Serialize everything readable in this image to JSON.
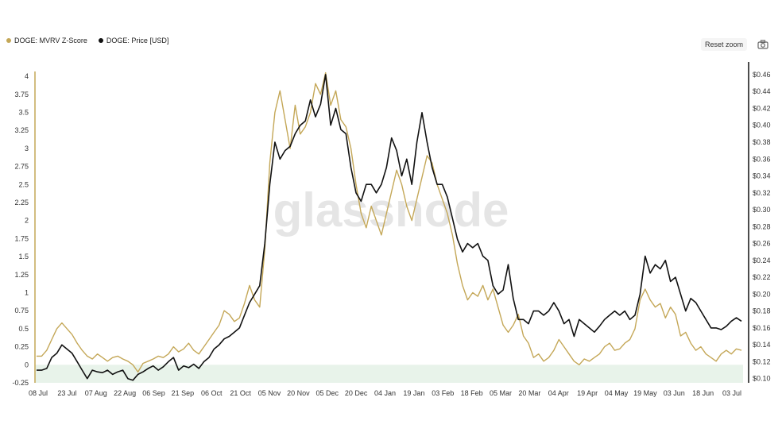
{
  "legend": [
    {
      "label": "DOGE: MVRV Z-Score",
      "color": "#c4a757"
    },
    {
      "label": "DOGE: Price [USD]",
      "color": "#111111"
    }
  ],
  "controls": {
    "reset_zoom": "Reset zoom",
    "camera_icon": "camera-icon"
  },
  "watermark": "glassnode",
  "chart_data": {
    "type": "line",
    "x_ticks": [
      "08 Jul",
      "23 Jul",
      "07 Aug",
      "22 Aug",
      "06 Sep",
      "21 Sep",
      "06 Oct",
      "21 Oct",
      "05 Nov",
      "20 Nov",
      "05 Dec",
      "20 Dec",
      "04 Jan",
      "19 Jan",
      "03 Feb",
      "18 Feb",
      "05 Mar",
      "20 Mar",
      "04 Apr",
      "19 Apr",
      "04 May",
      "19 May",
      "03 Jun",
      "18 Jun",
      "03 Jul"
    ],
    "y_left": {
      "ticks": [
        "-0.25",
        "0",
        "0.25",
        "0.5",
        "0.75",
        "1",
        "1.25",
        "1.5",
        "1.75",
        "2",
        "2.25",
        "2.5",
        "2.75",
        "3",
        "3.25",
        "3.5",
        "3.75",
        "4"
      ],
      "range": [
        -0.25,
        4.2
      ]
    },
    "y_right": {
      "ticks": [
        "$0.10",
        "$0.12",
        "$0.14",
        "$0.16",
        "$0.18",
        "$0.20",
        "$0.22",
        "$0.24",
        "$0.26",
        "$0.28",
        "$0.30",
        "$0.32",
        "$0.34",
        "$0.36",
        "$0.38",
        "$0.40",
        "$0.42",
        "$0.44",
        "$0.46"
      ],
      "range": [
        0.095,
        0.475
      ]
    },
    "series": [
      {
        "name": "DOGE: MVRV Z-Score",
        "axis": "left",
        "color": "#c4a757",
        "values": [
          0.12,
          0.12,
          0.2,
          0.35,
          0.5,
          0.58,
          0.5,
          0.42,
          0.3,
          0.2,
          0.12,
          0.08,
          0.15,
          0.1,
          0.05,
          0.1,
          0.12,
          0.08,
          0.05,
          0.0,
          -0.1,
          0.02,
          0.05,
          0.08,
          0.12,
          0.1,
          0.15,
          0.25,
          0.18,
          0.22,
          0.3,
          0.2,
          0.15,
          0.25,
          0.35,
          0.45,
          0.55,
          0.75,
          0.7,
          0.6,
          0.65,
          0.85,
          1.1,
          0.9,
          0.8,
          1.6,
          2.8,
          3.5,
          3.8,
          3.4,
          3.0,
          3.6,
          3.2,
          3.3,
          3.5,
          3.9,
          3.75,
          4.05,
          3.6,
          3.8,
          3.4,
          3.3,
          3.0,
          2.5,
          2.1,
          1.9,
          2.2,
          2.0,
          1.8,
          2.1,
          2.4,
          2.7,
          2.5,
          2.2,
          2.0,
          2.3,
          2.6,
          2.9,
          2.8,
          2.5,
          2.3,
          2.1,
          1.8,
          1.4,
          1.1,
          0.9,
          1.0,
          0.95,
          1.1,
          0.9,
          1.05,
          0.8,
          0.55,
          0.45,
          0.55,
          0.7,
          0.4,
          0.3,
          0.1,
          0.15,
          0.05,
          0.1,
          0.2,
          0.35,
          0.25,
          0.15,
          0.05,
          0.0,
          0.08,
          0.05,
          0.1,
          0.15,
          0.25,
          0.3,
          0.2,
          0.22,
          0.3,
          0.35,
          0.5,
          0.9,
          1.05,
          0.9,
          0.8,
          0.85,
          0.65,
          0.8,
          0.7,
          0.4,
          0.45,
          0.3,
          0.2,
          0.25,
          0.15,
          0.1,
          0.05,
          0.15,
          0.2,
          0.15,
          0.22,
          0.2
        ]
      },
      {
        "name": "DOGE: Price [USD]",
        "axis": "right",
        "color": "#111111",
        "values": [
          0.11,
          0.11,
          0.112,
          0.125,
          0.13,
          0.14,
          0.135,
          0.13,
          0.12,
          0.11,
          0.1,
          0.11,
          0.108,
          0.107,
          0.11,
          0.105,
          0.108,
          0.11,
          0.1,
          0.098,
          0.105,
          0.108,
          0.112,
          0.115,
          0.11,
          0.114,
          0.12,
          0.125,
          0.11,
          0.115,
          0.113,
          0.117,
          0.112,
          0.12,
          0.125,
          0.135,
          0.14,
          0.147,
          0.15,
          0.155,
          0.16,
          0.175,
          0.19,
          0.2,
          0.21,
          0.26,
          0.33,
          0.38,
          0.36,
          0.37,
          0.375,
          0.39,
          0.4,
          0.405,
          0.43,
          0.41,
          0.425,
          0.46,
          0.4,
          0.42,
          0.395,
          0.39,
          0.35,
          0.32,
          0.31,
          0.33,
          0.33,
          0.32,
          0.33,
          0.35,
          0.385,
          0.37,
          0.34,
          0.36,
          0.33,
          0.38,
          0.415,
          0.38,
          0.35,
          0.33,
          0.33,
          0.315,
          0.29,
          0.265,
          0.25,
          0.26,
          0.255,
          0.26,
          0.245,
          0.24,
          0.21,
          0.2,
          0.205,
          0.235,
          0.195,
          0.17,
          0.17,
          0.165,
          0.18,
          0.18,
          0.175,
          0.18,
          0.19,
          0.18,
          0.165,
          0.17,
          0.15,
          0.17,
          0.165,
          0.16,
          0.155,
          0.162,
          0.17,
          0.175,
          0.18,
          0.175,
          0.18,
          0.17,
          0.175,
          0.2,
          0.245,
          0.225,
          0.235,
          0.23,
          0.24,
          0.215,
          0.22,
          0.2,
          0.18,
          0.195,
          0.19,
          0.18,
          0.17,
          0.16,
          0.16,
          0.158,
          0.162,
          0.168,
          0.172,
          0.168
        ]
      }
    ],
    "zero_band": {
      "color": "#e8f3ea",
      "from": -0.25,
      "to": 0
    }
  }
}
